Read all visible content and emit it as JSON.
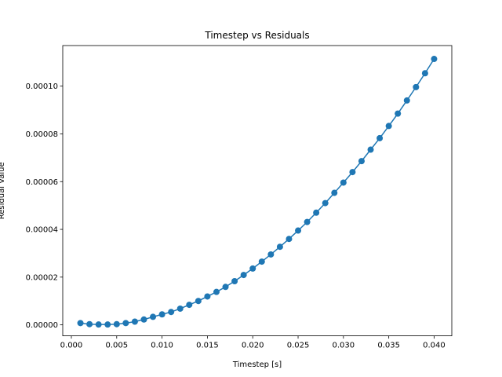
{
  "chart_data": {
    "type": "line",
    "title": "Timestep vs Residuals",
    "xlabel": "Timestep [s]",
    "ylabel": "Residual Value",
    "xlim": [
      -0.00095,
      0.04195
    ],
    "ylim": [
      -4.6e-06,
      0.000117
    ],
    "x_ticks": [
      0.0,
      0.005,
      0.01,
      0.015,
      0.02,
      0.025,
      0.03,
      0.035,
      0.04
    ],
    "x_tick_labels": [
      "0.000",
      "0.005",
      "0.010",
      "0.015",
      "0.020",
      "0.025",
      "0.030",
      "0.035",
      "0.040"
    ],
    "y_ticks": [
      0.0,
      2e-05,
      4e-05,
      6e-05,
      8e-05,
      0.0001
    ],
    "y_tick_labels": [
      "0.00000",
      "0.00002",
      "0.00004",
      "0.00006",
      "0.00008",
      "0.00010"
    ],
    "grid": false,
    "legend": null,
    "series": [
      {
        "color": "#1f77b4",
        "marker": "circle",
        "x": [
          0.001,
          0.002,
          0.003,
          0.004,
          0.005,
          0.006,
          0.007,
          0.008,
          0.009,
          0.01,
          0.011,
          0.012,
          0.013,
          0.014,
          0.015,
          0.016,
          0.017,
          0.018,
          0.019,
          0.02,
          0.021,
          0.022,
          0.023,
          0.024,
          0.025,
          0.026,
          0.027,
          0.028,
          0.029,
          0.03,
          0.031,
          0.032,
          0.033,
          0.034,
          0.035,
          0.036,
          0.037,
          0.038,
          0.039,
          0.04
        ],
        "y": [
          7.5e-07,
          3e-07,
          1.5e-07,
          1.5e-07,
          3e-07,
          7.5e-07,
          1.35e-06,
          2.25e-06,
          3.35e-06,
          4.4e-06,
          5.4e-06,
          6.8e-06,
          8.4e-06,
          1e-05,
          1.19e-05,
          1.38e-05,
          1.59e-05,
          1.83e-05,
          2.09e-05,
          2.36e-05,
          2.65e-05,
          2.95e-05,
          3.27e-05,
          3.6e-05,
          3.95e-05,
          4.31e-05,
          4.7e-05,
          5.1e-05,
          5.53e-05,
          5.96e-05,
          6.4e-05,
          6.86e-05,
          7.34e-05,
          7.82e-05,
          8.33e-05,
          8.85e-05,
          9.4e-05,
          9.96e-05,
          0.0001054,
          0.0001114
        ]
      }
    ]
  }
}
